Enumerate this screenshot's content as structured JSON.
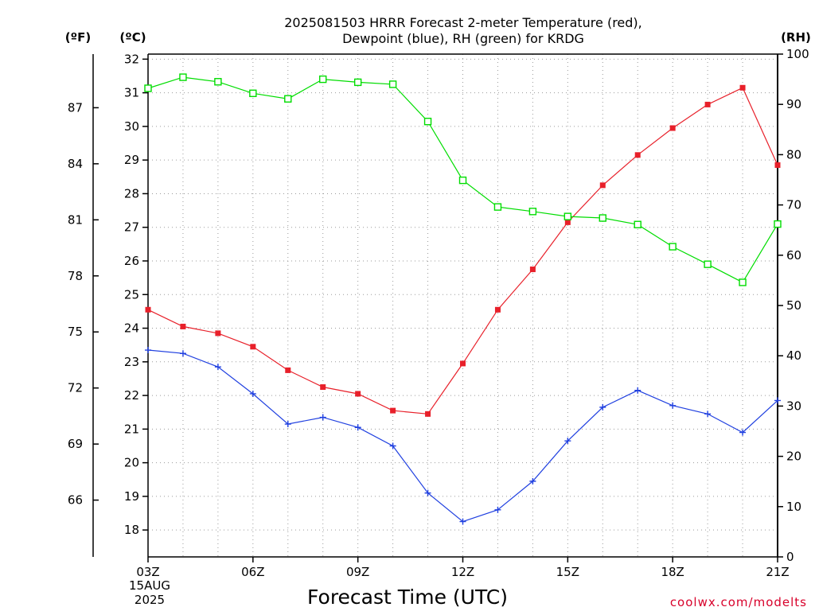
{
  "chart_data": {
    "type": "line",
    "title_lines": [
      "2025081503 HRRR Forecast 2-meter Temperature (red),",
      "Dewpoint (blue), RH (green) for KRDG"
    ],
    "xlabel": "Forecast Time (UTC)",
    "credit": "coolwx.com/modelts",
    "axes": {
      "x_hours": [
        3,
        21
      ],
      "x_ticks": [
        {
          "h": 3,
          "label": "03Z"
        },
        {
          "h": 6,
          "label": "06Z"
        },
        {
          "h": 9,
          "label": "09Z"
        },
        {
          "h": 12,
          "label": "12Z"
        },
        {
          "h": 15,
          "label": "15Z"
        },
        {
          "h": 18,
          "label": "18Z"
        },
        {
          "h": 21,
          "label": "21Z"
        }
      ],
      "x_date_line1": "15AUG",
      "x_date_line2": "2025",
      "left_c": {
        "unit": "(ºC)",
        "range": [
          17.2,
          32.15
        ],
        "ticks": [
          18,
          19,
          20,
          21,
          22,
          23,
          24,
          25,
          26,
          27,
          28,
          29,
          30,
          31,
          32
        ]
      },
      "left_f": {
        "unit": "(ºF)",
        "ticks": [
          66,
          69,
          72,
          75,
          78,
          81,
          84,
          87
        ]
      },
      "right_rh": {
        "unit": "(RH)",
        "range": [
          0,
          100
        ],
        "ticks": [
          0,
          10,
          20,
          30,
          40,
          50,
          60,
          70,
          80,
          90,
          100
        ]
      },
      "grid": "dotted"
    },
    "hours": [
      3,
      4,
      5,
      6,
      7,
      8,
      9,
      10,
      11,
      12,
      13,
      14,
      15,
      16,
      17,
      18,
      19,
      20,
      21
    ],
    "series": [
      {
        "name": "Temperature",
        "axis": "c",
        "color": "#e8202a",
        "marker": "filled-square",
        "values": [
          24.55,
          24.05,
          23.85,
          23.45,
          22.75,
          22.25,
          22.05,
          21.55,
          21.45,
          22.95,
          24.55,
          25.75,
          27.15,
          28.25,
          29.15,
          29.95,
          30.65,
          31.15,
          28.85
        ]
      },
      {
        "name": "Dewpoint",
        "axis": "c",
        "color": "#2040e0",
        "marker": "plus",
        "values": [
          23.35,
          23.25,
          22.85,
          22.05,
          21.15,
          21.35,
          21.05,
          20.5,
          19.1,
          18.25,
          18.6,
          19.45,
          20.65,
          21.65,
          22.15,
          21.7,
          21.45,
          20.9,
          21.85
        ]
      },
      {
        "name": "RH",
        "axis": "rh",
        "color": "#00dd00",
        "marker": "open-square",
        "values": [
          93.2,
          95.4,
          94.5,
          92.2,
          91.1,
          95.0,
          94.4,
          94.0,
          86.6,
          74.9,
          69.6,
          68.7,
          67.7,
          67.4,
          66.1,
          61.7,
          58.2,
          54.6,
          66.2
        ]
      }
    ]
  }
}
